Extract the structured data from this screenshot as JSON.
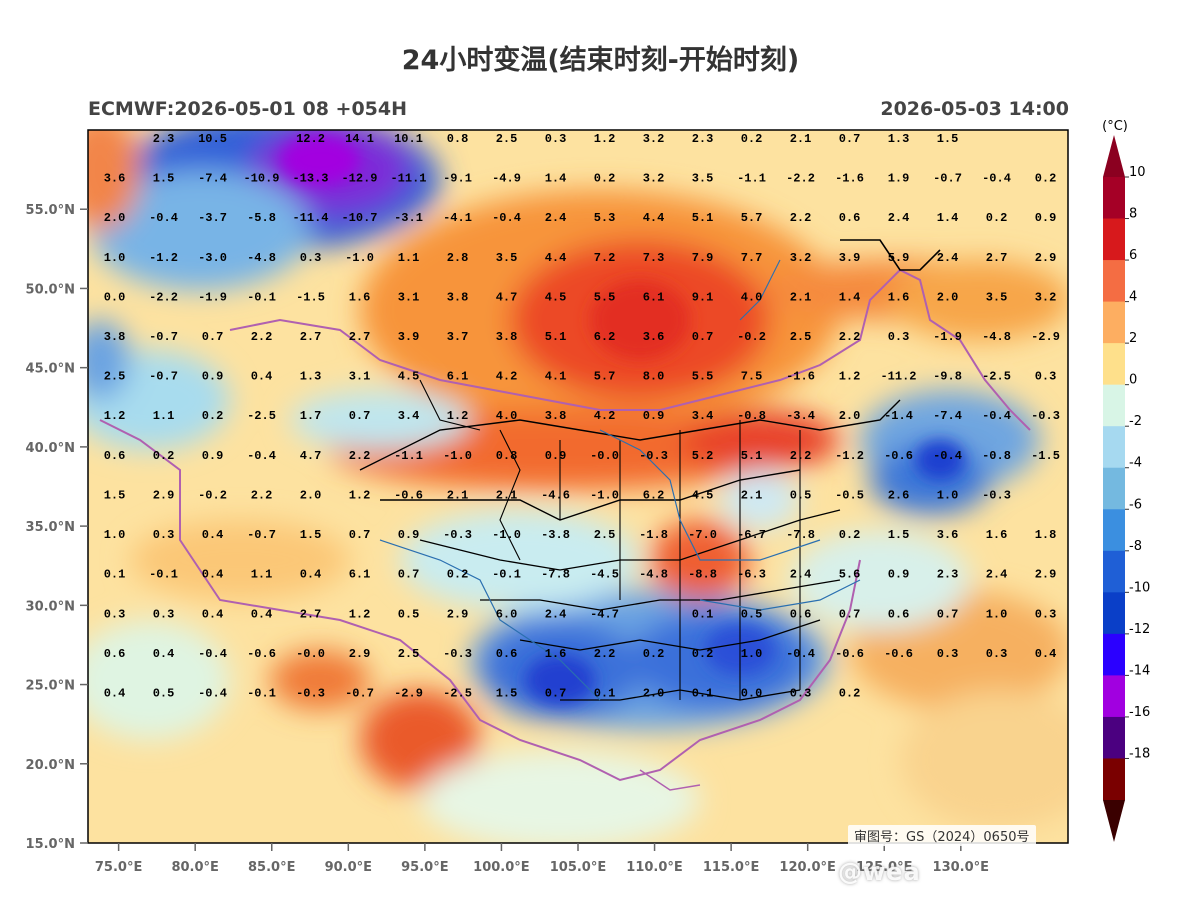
{
  "title": "24小时变温(结束时刻-开始时刻)",
  "model_run": "ECMWF:2026-05-01 08 +054H",
  "valid_time": "2026-05-03 14:00",
  "approval_number": "审图号：GS（2024）0650号",
  "watermark": "@wea",
  "colorbar": {
    "unit": "(°C)",
    "labels": [
      "10",
      "8",
      "6",
      "4",
      "2",
      "0",
      "-2",
      "-4",
      "-6",
      "-8",
      "-10",
      "-12",
      "-14",
      "-16",
      "-18"
    ],
    "colors": [
      "#a50026",
      "#d7191c",
      "#f46d43",
      "#fdae61",
      "#fee08b",
      "#d8f5e6",
      "#a6d9f0",
      "#74b9e0",
      "#3b8fe0",
      "#1f5fd6",
      "#0a3fc8",
      "#2b00ff",
      "#a100e0",
      "#4b0080",
      "#7a0000"
    ],
    "top_color": "#8b0020",
    "bottom_color": "#3a0000"
  },
  "axes": {
    "lon_ticks": [
      "75.0°E",
      "80.0°E",
      "85.0°E",
      "90.0°E",
      "95.0°E",
      "100.0°E",
      "105.0°E",
      "110.0°E",
      "115.0°E",
      "120.0°E",
      "125.0°E",
      "130.0°E"
    ],
    "lat_ticks": [
      "55.0°N",
      "50.0°N",
      "45.0°N",
      "40.0°N",
      "35.0°N",
      "30.0°N",
      "25.0°N",
      "20.0°N",
      "15.0°N"
    ],
    "lon_range": [
      73,
      137
    ],
    "lat_range": [
      15,
      60
    ]
  },
  "grid_values": {
    "rows": [
      {
        "lat": 59.5,
        "values": [
          "",
          "2.3",
          "10.5",
          "",
          "12.2",
          "14.1",
          "10.1",
          "0.8",
          "2.5",
          "0.3",
          "1.2",
          "3.2",
          "2.3",
          "0.2",
          "2.1",
          "0.7",
          "1.3",
          "1.5"
        ]
      },
      {
        "lat": 57,
        "values": [
          "3.6",
          "1.5",
          "-7.4",
          "-10.9",
          "-13.3",
          "-12.9",
          "-11.1",
          "-9.1",
          "-4.9",
          "1.4",
          "0.2",
          "3.2",
          "3.5",
          "-1.1",
          "-2.2",
          "-1.6",
          "1.9",
          "-0.7",
          "-0.4",
          "0.2"
        ]
      },
      {
        "lat": 54.5,
        "values": [
          "2.0",
          "-0.4",
          "-3.7",
          "-5.8",
          "-11.4",
          "-10.7",
          "-3.1",
          "-4.1",
          "-0.4",
          "2.4",
          "5.3",
          "4.4",
          "5.1",
          "5.7",
          "2.2",
          "0.6",
          "2.4",
          "1.4",
          "0.2",
          "0.9"
        ]
      },
      {
        "lat": 52,
        "values": [
          "1.0",
          "-1.2",
          "-3.0",
          "-4.8",
          "0.3",
          "-1.0",
          "1.1",
          "2.8",
          "3.5",
          "4.4",
          "7.2",
          "7.3",
          "7.9",
          "7.7",
          "3.2",
          "3.9",
          "5.9",
          "2.4",
          "2.7",
          "2.9"
        ]
      },
      {
        "lat": 49.5,
        "values": [
          "0.0",
          "-2.2",
          "-1.9",
          "-0.1",
          "-1.5",
          "1.6",
          "3.1",
          "3.8",
          "4.7",
          "4.5",
          "5.5",
          "6.1",
          "9.1",
          "4.0",
          "2.1",
          "1.4",
          "1.6",
          "2.0",
          "3.5",
          "3.2"
        ]
      },
      {
        "lat": 47,
        "values": [
          "3.8",
          "-0.7",
          "0.7",
          "2.2",
          "2.7",
          "2.7",
          "3.9",
          "3.7",
          "3.8",
          "5.1",
          "6.2",
          "3.6",
          "0.7",
          "-0.2",
          "2.5",
          "2.2",
          "0.3",
          "-1.9",
          "-4.8",
          "-2.9"
        ]
      },
      {
        "lat": 44.5,
        "values": [
          "2.5",
          "-0.7",
          "0.9",
          "0.4",
          "1.3",
          "3.1",
          "4.5",
          "6.1",
          "4.2",
          "4.1",
          "5.7",
          "8.0",
          "5.5",
          "7.5",
          "-1.6",
          "1.2",
          "-11.2",
          "-9.8",
          "-2.5",
          "0.3"
        ]
      },
      {
        "lat": 42,
        "values": [
          "1.2",
          "1.1",
          "0.2",
          "-2.5",
          "1.7",
          "0.7",
          "3.4",
          "1.2",
          "4.0",
          "3.8",
          "4.2",
          "0.9",
          "3.4",
          "-0.8",
          "-3.4",
          "2.0",
          "-1.4",
          "-7.4",
          "-0.4",
          "-0.3"
        ]
      },
      {
        "lat": 39.5,
        "values": [
          "0.6",
          "0.2",
          "0.9",
          "-0.4",
          "4.7",
          "2.2",
          "-1.1",
          "-1.0",
          "0.8",
          "0.9",
          "-0.0",
          "-0.3",
          "5.2",
          "5.1",
          "2.2",
          "-1.2",
          "-0.6",
          "-0.4",
          "-0.8",
          "-1.5"
        ]
      },
      {
        "lat": 37,
        "values": [
          "1.5",
          "2.9",
          "-0.2",
          "2.2",
          "2.0",
          "1.2",
          "-0.6",
          "2.1",
          "2.1",
          "-4.6",
          "-1.0",
          "6.2",
          "4.5",
          "2.1",
          "0.5",
          "-0.5",
          "2.6",
          "1.0",
          "-0.3"
        ]
      },
      {
        "lat": 34.5,
        "values": [
          "1.0",
          "0.3",
          "0.4",
          "-0.7",
          "1.5",
          "0.7",
          "0.9",
          "-0.3",
          "-1.0",
          "-3.8",
          "2.5",
          "-1.8",
          "-7.0",
          "-6.7",
          "-7.8",
          "0.2",
          "1.5",
          "3.6",
          "1.6",
          "1.8"
        ]
      },
      {
        "lat": 32,
        "values": [
          "0.1",
          "-0.1",
          "0.4",
          "1.1",
          "0.4",
          "6.1",
          "0.7",
          "0.2",
          "-0.1",
          "-7.8",
          "-4.5",
          "-4.8",
          "-8.8",
          "-6.3",
          "2.4",
          "5.6",
          "0.9",
          "2.3",
          "2.4",
          "2.9"
        ]
      },
      {
        "lat": 29.5,
        "values": [
          "0.3",
          "0.3",
          "0.4",
          "0.4",
          "2.7",
          "1.2",
          "0.5",
          "2.9",
          "6.0",
          "2.4",
          "-4.7",
          "",
          "0.1",
          "0.5",
          "0.6",
          "0.7",
          "0.6",
          "0.7",
          "1.0",
          "0.3"
        ]
      },
      {
        "lat": 27,
        "values": [
          "0.6",
          "0.4",
          "-0.4",
          "-0.6",
          "-0.0",
          "2.9",
          "2.5",
          "-0.3",
          "0.6",
          "1.6",
          "2.2",
          "0.2",
          "0.2",
          "1.0",
          "-0.4",
          "-0.6",
          "-0.6",
          "0.3",
          "0.3",
          "0.4"
        ]
      },
      {
        "lat": 24.5,
        "values": [
          "0.4",
          "0.5",
          "-0.4",
          "-0.1",
          "-0.3",
          "-0.7",
          "-2.9",
          "-2.5",
          "1.5",
          "0.7",
          "0.1",
          "2.0",
          "0.1",
          "0.0",
          "0.3",
          "0.2"
        ]
      }
    ]
  }
}
